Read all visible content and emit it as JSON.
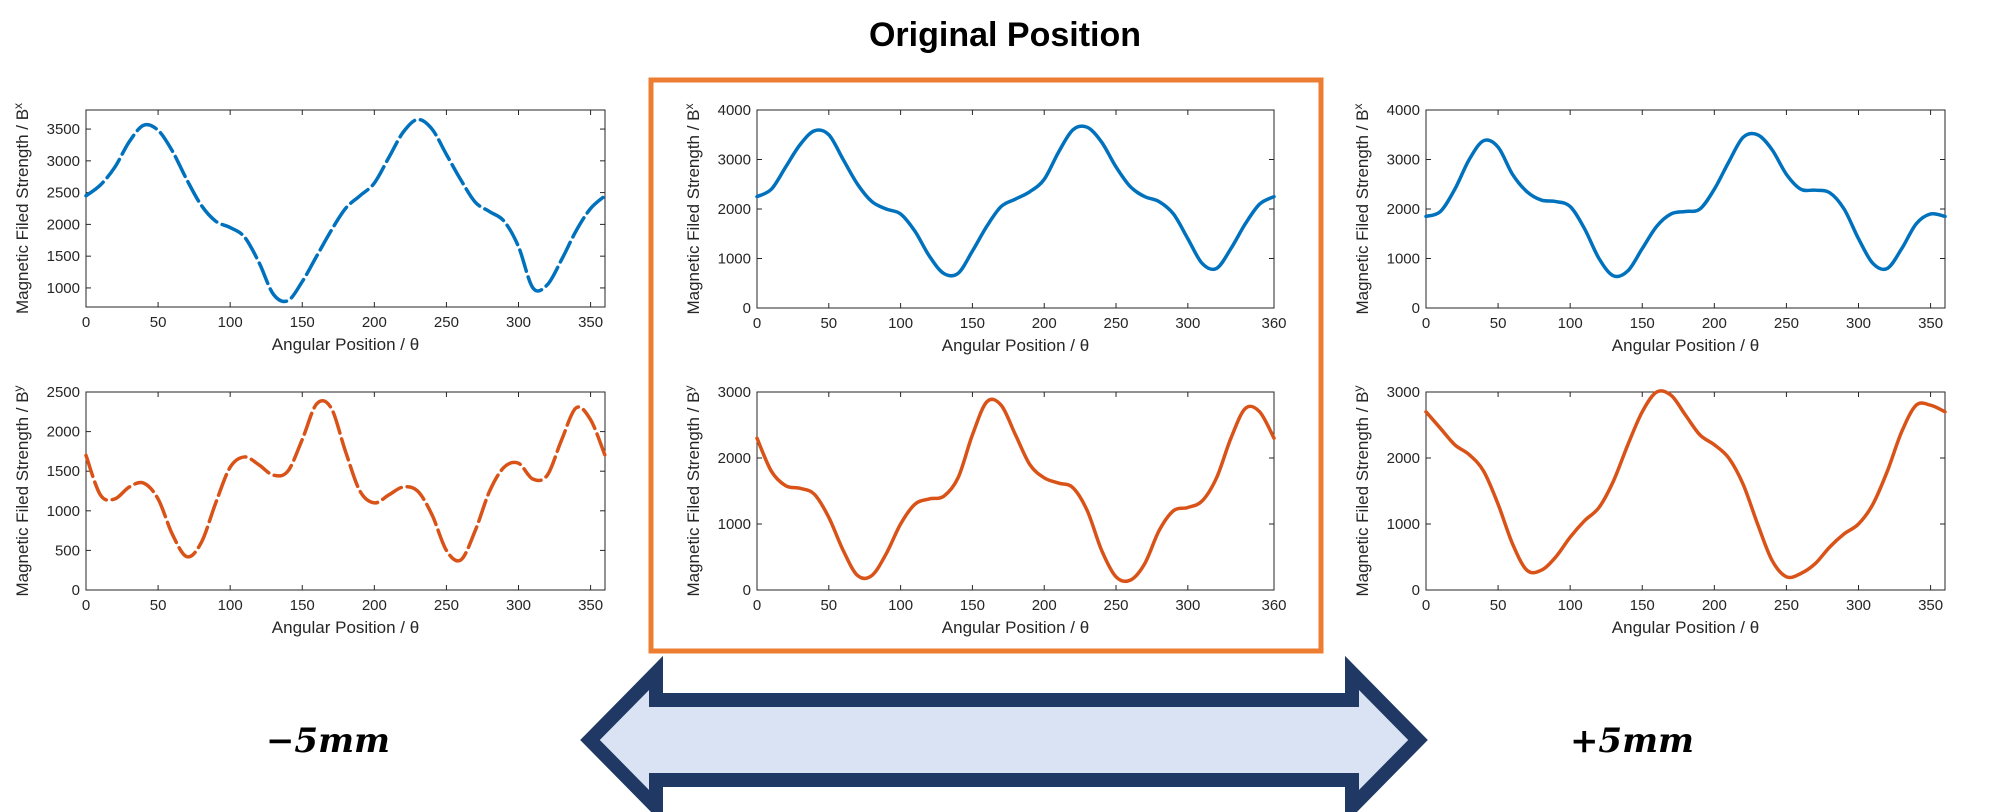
{
  "figure": {
    "center_title": "Original Position",
    "left_label": "−5mm",
    "right_label": "+5mm",
    "arrow_fill": "#dae3f3",
    "arrow_stroke": "#203864",
    "highlight_border": "#ed7d31"
  },
  "chart_data": [
    {
      "type": "line",
      "group": "−5mm",
      "component": "Bx",
      "xlabel": "Angular Position / θ",
      "ylabel_main": "Magnetic Filed Strength / B",
      "ylabel_sub": "x",
      "xlim": [
        0,
        360
      ],
      "ylim": [
        700,
        3800
      ],
      "xticks": [
        0,
        50,
        100,
        150,
        200,
        250,
        300,
        350
      ],
      "yticks": [
        1000,
        1500,
        2000,
        2500,
        3000,
        3500
      ],
      "color": "#0072bd",
      "dashed": true,
      "series": [
        {
          "x": [
            0,
            10,
            20,
            30,
            40,
            50,
            60,
            70,
            80,
            90,
            100,
            110,
            120,
            130,
            140,
            150,
            160,
            170,
            180,
            190,
            200,
            210,
            220,
            230,
            240,
            250,
            260,
            270,
            280,
            290,
            300,
            310,
            320,
            330,
            340,
            350,
            360
          ],
          "y": [
            2450,
            2620,
            2900,
            3300,
            3560,
            3480,
            3150,
            2700,
            2300,
            2050,
            1950,
            1800,
            1400,
            900,
            800,
            1100,
            1500,
            1900,
            2250,
            2450,
            2650,
            3050,
            3450,
            3650,
            3500,
            3100,
            2700,
            2350,
            2200,
            2050,
            1650,
            1000,
            1050,
            1450,
            1900,
            2250,
            2450
          ]
        }
      ]
    },
    {
      "type": "line",
      "group": "−5mm",
      "component": "By",
      "xlabel": "Angular Position / θ",
      "ylabel_main": "Magnetic Filed Strength / B",
      "ylabel_sub": "y",
      "xlim": [
        0,
        360
      ],
      "ylim": [
        0,
        2500
      ],
      "xticks": [
        0,
        50,
        100,
        150,
        200,
        250,
        300,
        350
      ],
      "yticks": [
        0,
        500,
        1000,
        1500,
        2000,
        2500
      ],
      "color": "#d95319",
      "dashed": true,
      "series": [
        {
          "x": [
            0,
            10,
            20,
            30,
            40,
            50,
            60,
            70,
            80,
            90,
            100,
            110,
            120,
            130,
            140,
            150,
            160,
            170,
            180,
            190,
            200,
            210,
            220,
            230,
            240,
            250,
            260,
            270,
            280,
            290,
            300,
            310,
            320,
            330,
            340,
            350,
            360
          ],
          "y": [
            1700,
            1200,
            1150,
            1300,
            1350,
            1150,
            700,
            420,
            600,
            1100,
            1550,
            1680,
            1580,
            1450,
            1500,
            1900,
            2350,
            2300,
            1750,
            1250,
            1100,
            1200,
            1300,
            1250,
            950,
            500,
            380,
            750,
            1250,
            1550,
            1600,
            1400,
            1450,
            1900,
            2300,
            2150,
            1700
          ]
        }
      ]
    },
    {
      "type": "line",
      "group": "Original Position",
      "component": "Bx",
      "xlabel": "Angular Position / θ",
      "ylabel_main": "Magnetic Filed Strength / B",
      "ylabel_sub": "x",
      "xlim": [
        0,
        360
      ],
      "ylim": [
        0,
        4000
      ],
      "xticks": [
        0,
        50,
        100,
        150,
        200,
        250,
        300,
        360
      ],
      "yticks": [
        0,
        1000,
        2000,
        3000,
        4000
      ],
      "color": "#0072bd",
      "dashed": false,
      "series": [
        {
          "x": [
            0,
            10,
            20,
            30,
            40,
            50,
            60,
            70,
            80,
            90,
            100,
            110,
            120,
            130,
            140,
            150,
            160,
            170,
            180,
            190,
            200,
            210,
            220,
            230,
            240,
            250,
            260,
            270,
            280,
            290,
            300,
            310,
            320,
            330,
            340,
            350,
            360
          ],
          "y": [
            2250,
            2400,
            2850,
            3300,
            3580,
            3500,
            3000,
            2500,
            2150,
            2000,
            1900,
            1550,
            1050,
            700,
            700,
            1150,
            1650,
            2050,
            2200,
            2350,
            2600,
            3150,
            3600,
            3650,
            3350,
            2850,
            2450,
            2250,
            2150,
            1900,
            1400,
            900,
            800,
            1200,
            1700,
            2100,
            2250
          ]
        }
      ]
    },
    {
      "type": "line",
      "group": "Original Position",
      "component": "By",
      "xlabel": "Angular Position / θ",
      "ylabel_main": "Magnetic Filed Strength / B",
      "ylabel_sub": "y",
      "xlim": [
        0,
        360
      ],
      "ylim": [
        0,
        3000
      ],
      "xticks": [
        0,
        50,
        100,
        150,
        200,
        250,
        300,
        360
      ],
      "yticks": [
        0,
        1000,
        2000,
        3000
      ],
      "color": "#d95319",
      "dashed": false,
      "series": [
        {
          "x": [
            0,
            10,
            20,
            30,
            40,
            50,
            60,
            70,
            80,
            90,
            100,
            110,
            120,
            130,
            140,
            150,
            160,
            170,
            180,
            190,
            200,
            210,
            220,
            230,
            240,
            250,
            260,
            270,
            280,
            290,
            300,
            310,
            320,
            330,
            340,
            350,
            360
          ],
          "y": [
            2300,
            1800,
            1580,
            1540,
            1450,
            1100,
            600,
            220,
            220,
            550,
            1000,
            1300,
            1380,
            1420,
            1700,
            2350,
            2850,
            2800,
            2350,
            1900,
            1700,
            1620,
            1550,
            1200,
            600,
            200,
            150,
            400,
            900,
            1200,
            1250,
            1350,
            1700,
            2300,
            2750,
            2700,
            2300
          ]
        }
      ]
    },
    {
      "type": "line",
      "group": "+5mm",
      "component": "Bx",
      "xlabel": "Angular Position / θ",
      "ylabel_main": "Magnetic Filed Strength / B",
      "ylabel_sub": "x",
      "xlim": [
        0,
        360
      ],
      "ylim": [
        0,
        4000
      ],
      "xticks": [
        0,
        50,
        100,
        150,
        200,
        250,
        300,
        350
      ],
      "yticks": [
        0,
        1000,
        2000,
        3000,
        4000
      ],
      "color": "#0072bd",
      "dashed": false,
      "series": [
        {
          "x": [
            0,
            10,
            20,
            30,
            40,
            50,
            60,
            70,
            80,
            90,
            100,
            110,
            120,
            130,
            140,
            150,
            160,
            170,
            180,
            190,
            200,
            210,
            220,
            230,
            240,
            250,
            260,
            270,
            280,
            290,
            300,
            310,
            320,
            330,
            340,
            350,
            360
          ],
          "y": [
            1850,
            1950,
            2400,
            3000,
            3380,
            3250,
            2700,
            2350,
            2180,
            2150,
            2050,
            1600,
            1000,
            650,
            750,
            1200,
            1650,
            1900,
            1950,
            2000,
            2400,
            2950,
            3450,
            3500,
            3200,
            2700,
            2400,
            2380,
            2330,
            2000,
            1400,
            900,
            800,
            1200,
            1700,
            1900,
            1850
          ]
        }
      ]
    },
    {
      "type": "line",
      "group": "+5mm",
      "component": "By",
      "xlabel": "Angular Position / θ",
      "ylabel_main": "Magnetic Filed Strength / B",
      "ylabel_sub": "y",
      "xlim": [
        0,
        360
      ],
      "ylim": [
        0,
        3000
      ],
      "xticks": [
        0,
        50,
        100,
        150,
        200,
        250,
        300,
        350
      ],
      "yticks": [
        0,
        1000,
        2000,
        3000
      ],
      "color": "#d95319",
      "dashed": false,
      "series": [
        {
          "x": [
            0,
            10,
            20,
            30,
            40,
            50,
            60,
            70,
            80,
            90,
            100,
            110,
            120,
            130,
            140,
            150,
            160,
            170,
            180,
            190,
            200,
            210,
            220,
            230,
            240,
            250,
            260,
            270,
            280,
            290,
            300,
            310,
            320,
            330,
            340,
            350,
            360
          ],
          "y": [
            2700,
            2450,
            2200,
            2050,
            1800,
            1300,
            700,
            300,
            300,
            500,
            800,
            1050,
            1250,
            1650,
            2200,
            2700,
            3000,
            2950,
            2650,
            2350,
            2200,
            2000,
            1600,
            1000,
            450,
            200,
            250,
            400,
            650,
            850,
            1000,
            1300,
            1800,
            2400,
            2800,
            2800,
            2700
          ]
        }
      ]
    }
  ]
}
